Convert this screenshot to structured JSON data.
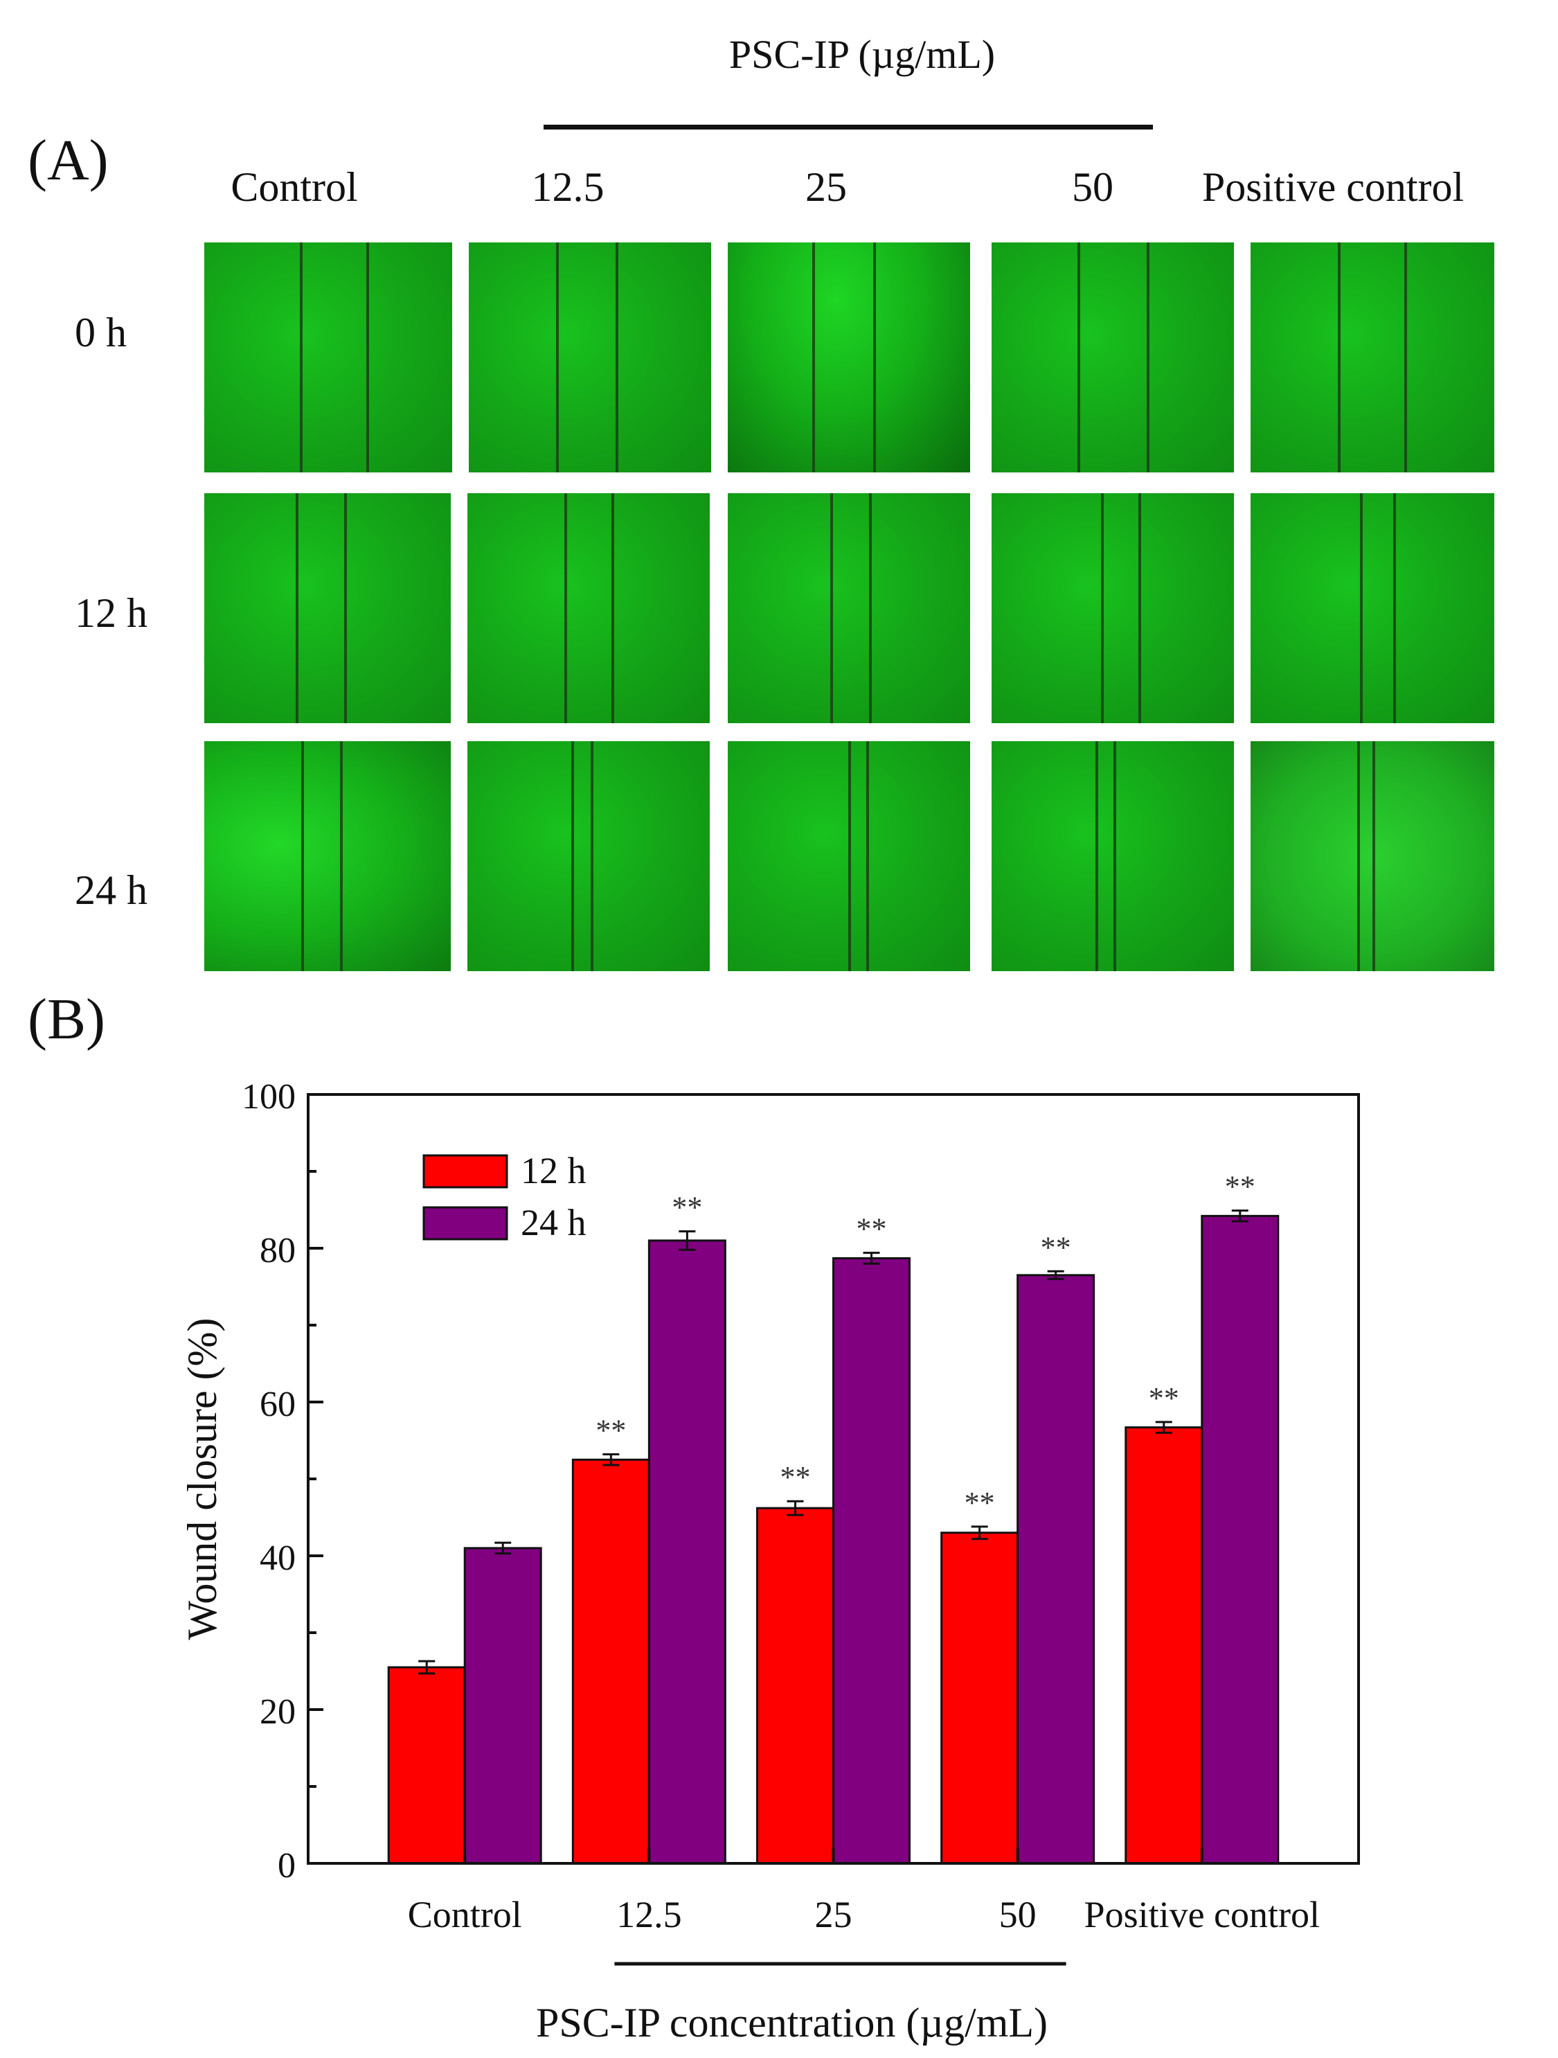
{
  "panel_a": {
    "label": "(A)",
    "group_title": "PSC-IP (µg/mL)",
    "columns": [
      "Control",
      "12.5",
      "25",
      "50",
      "Positive control"
    ],
    "rows": [
      "0 h",
      "12 h",
      "24 h"
    ]
  },
  "panel_b": {
    "label": "(B)"
  },
  "chart_data": {
    "type": "bar",
    "title": "",
    "xlabel": "PSC-IP concentration (µg/mL)",
    "ylabel": "Wound closure (%)",
    "ylim": [
      0,
      100
    ],
    "yticks": [
      0,
      20,
      40,
      60,
      80,
      100
    ],
    "categories": [
      "Control",
      "12.5",
      "25",
      "50",
      "Positive control"
    ],
    "series": [
      {
        "name": "12 h",
        "color": "#ff0000",
        "values": [
          25.5,
          52.5,
          46.2,
          43.0,
          56.7
        ],
        "errors": [
          0.8,
          0.7,
          0.9,
          0.8,
          0.7
        ],
        "annotations": [
          "",
          "**",
          "**",
          "**",
          "**"
        ]
      },
      {
        "name": "24 h",
        "color": "#800080",
        "values": [
          41.0,
          81.0,
          78.7,
          76.5,
          84.2
        ],
        "errors": [
          0.7,
          1.2,
          0.7,
          0.5,
          0.7
        ],
        "annotations": [
          "",
          "**",
          "**",
          "**",
          "**"
        ]
      }
    ],
    "legend_position": "top-left",
    "bracket_label_categories": [
      "12.5",
      "25",
      "50"
    ]
  }
}
